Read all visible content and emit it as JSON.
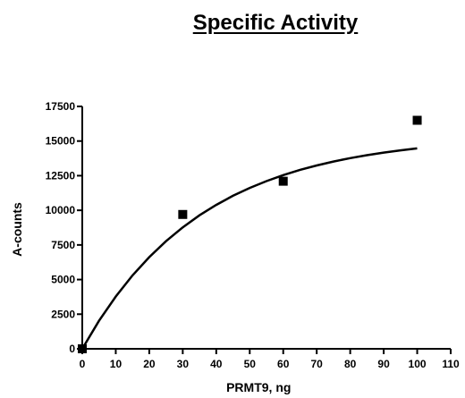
{
  "chart_data": {
    "type": "scatter",
    "title": "Specific Activity",
    "xlabel": "PRMT9, ng",
    "ylabel": "A-counts",
    "xlim": [
      0,
      110
    ],
    "ylim": [
      0,
      17500
    ],
    "xticks": [
      0,
      10,
      20,
      30,
      40,
      50,
      60,
      70,
      80,
      90,
      100,
      110
    ],
    "yticks": [
      0,
      2500,
      5000,
      7500,
      10000,
      12500,
      15000,
      17500
    ],
    "grid": false,
    "series": [
      {
        "marker": "square",
        "points": [
          {
            "x": 0,
            "y": 0
          },
          {
            "x": 30,
            "y": 9700
          },
          {
            "x": 60,
            "y": 12100
          },
          {
            "x": 100,
            "y": 16500
          }
        ]
      }
    ],
    "fit_curve": {
      "model": "one-phase association",
      "x": [
        0,
        5,
        10,
        15,
        20,
        25,
        30,
        35,
        40,
        45,
        50,
        55,
        60,
        65,
        70,
        75,
        80,
        85,
        90,
        95,
        100
      ],
      "y": [
        0,
        2020,
        3780,
        5300,
        6620,
        7770,
        8770,
        9640,
        10390,
        11050,
        11620,
        12110,
        12540,
        12920,
        13240,
        13520,
        13770,
        13980,
        14170,
        14330,
        14470
      ]
    }
  }
}
